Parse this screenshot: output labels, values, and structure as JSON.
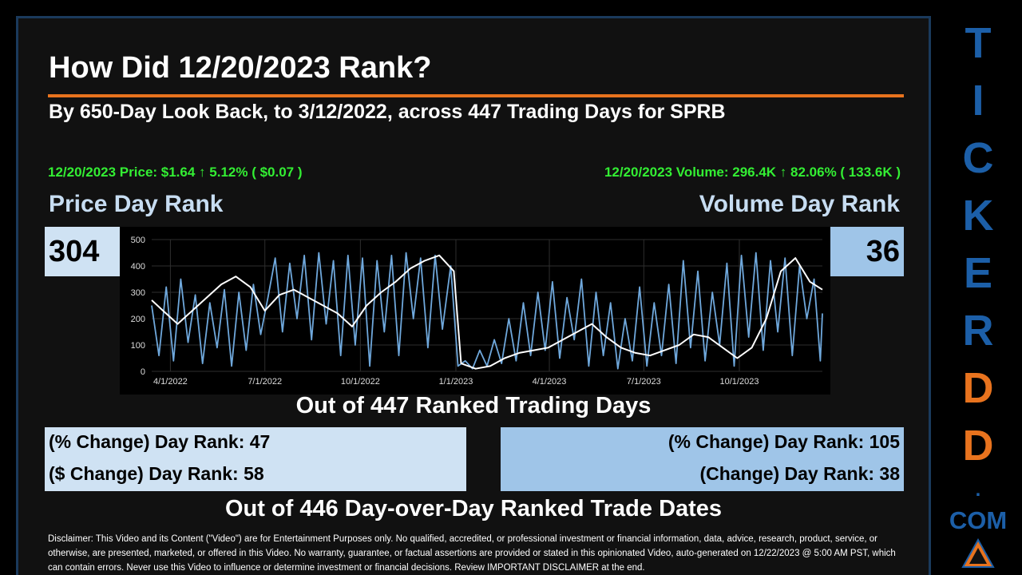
{
  "title": "How Did 12/20/2023 Rank?",
  "subtitle": "By 650-Day Look Back, to 3/12/2022, across 447 Trading Days for SPRB",
  "price_summary": "12/20/2023 Price: $1.64 ↑ 5.12% ( $0.07 )",
  "volume_summary": "12/20/2023 Volume: 296.4K ↑ 82.06% ( 133.6K )",
  "price_heading": "Price Day Rank",
  "volume_heading": "Volume Day Rank",
  "price_rank": "304",
  "volume_rank": "36",
  "out_of_ranked": "Out of 447 Ranked Trading Days",
  "price_stats": {
    "pct_change": "(% Change) Day Rank: 47",
    "dollar_change": "($ Change) Day Rank: 58"
  },
  "volume_stats": {
    "pct_change": "(% Change) Day Rank: 105",
    "change": "(Change) Day Rank: 38"
  },
  "out_of_dod": "Out of 446 Day-over-Day Ranked Trade Dates",
  "disclaimer": "Disclaimer: This Video and its Content (\"Video\") are for Entertainment Purposes only. No qualified, accredited, or professional investment or financial information, data, advice, research, product, service, or otherwise, are presented, marketed, or offered in this Video. No warranty, guarantee, or factual assertions are provided or stated in this opinionated Video, auto-generated on 12/22/2023 @ 5:00 AM PST, which can contain errors. Never use this Video to influence or determine investment or financial decisions. Review IMPORTANT DISCLAIMER at the end.",
  "brand": {
    "letters": [
      "T",
      "I",
      "C",
      "K",
      "E",
      "R",
      "D",
      "D"
    ],
    "dot": ".",
    "com": "COM",
    "blue": "#1c5fa8",
    "orange": "#e8731e"
  },
  "colors": {
    "green": "#33ee33",
    "light_blue_box": "#cfe2f3",
    "mid_blue_box": "#9fc5e8",
    "accent_orange": "#e8731e",
    "series_price": "#ffffff",
    "series_volume": "#6fa8dc"
  },
  "chart_data": {
    "type": "line",
    "x_start": "2022-03-14",
    "x_end": "2023-12-20",
    "xticks": [
      {
        "date": "2022-04-01",
        "label": "4/1/2022"
      },
      {
        "date": "2022-07-01",
        "label": "7/1/2022"
      },
      {
        "date": "2022-10-01",
        "label": "10/1/2022"
      },
      {
        "date": "2023-01-01",
        "label": "1/1/2023"
      },
      {
        "date": "2023-04-01",
        "label": "4/1/2023"
      },
      {
        "date": "2023-07-01",
        "label": "7/1/2023"
      },
      {
        "date": "2023-10-01",
        "label": "10/1/2023"
      }
    ],
    "ylim": [
      0,
      500
    ],
    "yticks": [
      0,
      100,
      200,
      300,
      400,
      500
    ],
    "grid": true,
    "series": [
      {
        "color": "#ffffff",
        "points": [
          [
            "2022-03-14",
            270
          ],
          [
            "2022-03-25",
            230
          ],
          [
            "2022-04-08",
            180
          ],
          [
            "2022-04-22",
            230
          ],
          [
            "2022-05-06",
            280
          ],
          [
            "2022-05-20",
            330
          ],
          [
            "2022-06-03",
            360
          ],
          [
            "2022-06-17",
            320
          ],
          [
            "2022-07-01",
            230
          ],
          [
            "2022-07-15",
            290
          ],
          [
            "2022-07-29",
            310
          ],
          [
            "2022-08-12",
            280
          ],
          [
            "2022-08-26",
            250
          ],
          [
            "2022-09-09",
            220
          ],
          [
            "2022-09-23",
            170
          ],
          [
            "2022-10-07",
            250
          ],
          [
            "2022-10-21",
            300
          ],
          [
            "2022-11-04",
            340
          ],
          [
            "2022-11-18",
            390
          ],
          [
            "2022-12-02",
            420
          ],
          [
            "2022-12-16",
            440
          ],
          [
            "2022-12-30",
            380
          ],
          [
            "2023-01-06",
            30
          ],
          [
            "2023-01-20",
            10
          ],
          [
            "2023-02-03",
            20
          ],
          [
            "2023-02-17",
            50
          ],
          [
            "2023-03-03",
            70
          ],
          [
            "2023-03-17",
            80
          ],
          [
            "2023-03-31",
            90
          ],
          [
            "2023-04-14",
            120
          ],
          [
            "2023-04-28",
            150
          ],
          [
            "2023-05-12",
            180
          ],
          [
            "2023-05-26",
            130
          ],
          [
            "2023-06-09",
            90
          ],
          [
            "2023-06-23",
            70
          ],
          [
            "2023-07-07",
            60
          ],
          [
            "2023-07-21",
            80
          ],
          [
            "2023-08-04",
            100
          ],
          [
            "2023-08-18",
            140
          ],
          [
            "2023-09-01",
            130
          ],
          [
            "2023-09-15",
            90
          ],
          [
            "2023-09-29",
            50
          ],
          [
            "2023-10-13",
            90
          ],
          [
            "2023-10-27",
            200
          ],
          [
            "2023-11-10",
            380
          ],
          [
            "2023-11-24",
            430
          ],
          [
            "2023-12-08",
            340
          ],
          [
            "2023-12-20",
            310
          ]
        ]
      },
      {
        "color": "#6fa8dc",
        "points": [
          [
            "2022-03-14",
            250
          ],
          [
            "2022-03-21",
            60
          ],
          [
            "2022-03-28",
            320
          ],
          [
            "2022-04-04",
            40
          ],
          [
            "2022-04-11",
            350
          ],
          [
            "2022-04-18",
            110
          ],
          [
            "2022-04-25",
            290
          ],
          [
            "2022-05-02",
            30
          ],
          [
            "2022-05-09",
            260
          ],
          [
            "2022-05-16",
            90
          ],
          [
            "2022-05-23",
            310
          ],
          [
            "2022-05-30",
            20
          ],
          [
            "2022-06-06",
            300
          ],
          [
            "2022-06-13",
            80
          ],
          [
            "2022-06-20",
            330
          ],
          [
            "2022-06-27",
            140
          ],
          [
            "2022-07-04",
            280
          ],
          [
            "2022-07-11",
            430
          ],
          [
            "2022-07-18",
            150
          ],
          [
            "2022-07-25",
            410
          ],
          [
            "2022-08-01",
            200
          ],
          [
            "2022-08-08",
            440
          ],
          [
            "2022-08-15",
            120
          ],
          [
            "2022-08-22",
            450
          ],
          [
            "2022-08-29",
            180
          ],
          [
            "2022-09-05",
            420
          ],
          [
            "2022-09-12",
            60
          ],
          [
            "2022-09-19",
            440
          ],
          [
            "2022-09-26",
            100
          ],
          [
            "2022-10-03",
            430
          ],
          [
            "2022-10-10",
            20
          ],
          [
            "2022-10-17",
            420
          ],
          [
            "2022-10-24",
            150
          ],
          [
            "2022-10-31",
            440
          ],
          [
            "2022-11-07",
            60
          ],
          [
            "2022-11-14",
            450
          ],
          [
            "2022-11-21",
            200
          ],
          [
            "2022-11-28",
            430
          ],
          [
            "2022-12-05",
            90
          ],
          [
            "2022-12-12",
            440
          ],
          [
            "2022-12-19",
            160
          ],
          [
            "2022-12-27",
            400
          ],
          [
            "2023-01-03",
            20
          ],
          [
            "2023-01-10",
            40
          ],
          [
            "2023-01-17",
            10
          ],
          [
            "2023-01-24",
            80
          ],
          [
            "2023-01-31",
            20
          ],
          [
            "2023-02-07",
            120
          ],
          [
            "2023-02-14",
            30
          ],
          [
            "2023-02-21",
            200
          ],
          [
            "2023-02-28",
            40
          ],
          [
            "2023-03-07",
            260
          ],
          [
            "2023-03-14",
            60
          ],
          [
            "2023-03-21",
            300
          ],
          [
            "2023-03-28",
            80
          ],
          [
            "2023-04-04",
            340
          ],
          [
            "2023-04-11",
            50
          ],
          [
            "2023-04-18",
            280
          ],
          [
            "2023-04-25",
            120
          ],
          [
            "2023-05-02",
            350
          ],
          [
            "2023-05-09",
            20
          ],
          [
            "2023-05-16",
            300
          ],
          [
            "2023-05-23",
            60
          ],
          [
            "2023-05-30",
            260
          ],
          [
            "2023-06-06",
            10
          ],
          [
            "2023-06-13",
            200
          ],
          [
            "2023-06-20",
            40
          ],
          [
            "2023-06-27",
            320
          ],
          [
            "2023-07-04",
            20
          ],
          [
            "2023-07-11",
            260
          ],
          [
            "2023-07-18",
            60
          ],
          [
            "2023-07-25",
            330
          ],
          [
            "2023-08-01",
            30
          ],
          [
            "2023-08-08",
            420
          ],
          [
            "2023-08-15",
            90
          ],
          [
            "2023-08-22",
            380
          ],
          [
            "2023-08-29",
            40
          ],
          [
            "2023-09-05",
            300
          ],
          [
            "2023-09-12",
            100
          ],
          [
            "2023-09-19",
            410
          ],
          [
            "2023-09-26",
            20
          ],
          [
            "2023-10-03",
            440
          ],
          [
            "2023-10-10",
            130
          ],
          [
            "2023-10-17",
            450
          ],
          [
            "2023-10-24",
            80
          ],
          [
            "2023-10-31",
            420
          ],
          [
            "2023-11-07",
            150
          ],
          [
            "2023-11-14",
            430
          ],
          [
            "2023-11-21",
            60
          ],
          [
            "2023-11-28",
            400
          ],
          [
            "2023-12-05",
            200
          ],
          [
            "2023-12-12",
            350
          ],
          [
            "2023-12-18",
            40
          ],
          [
            "2023-12-20",
            220
          ]
        ]
      }
    ]
  }
}
